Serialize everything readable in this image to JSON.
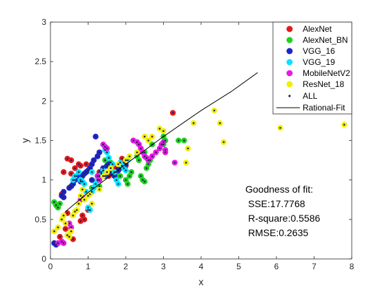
{
  "chart_data": {
    "type": "scatter",
    "title": "",
    "xlabel": "x",
    "ylabel": "y",
    "xlim": [
      0,
      8
    ],
    "ylim": [
      0,
      3
    ],
    "xticks": [
      "0",
      "1",
      "2",
      "3",
      "4",
      "5",
      "6",
      "7",
      "8"
    ],
    "yticks": [
      "0",
      "0.5",
      "1",
      "1.5",
      "2",
      "2.5",
      "3"
    ],
    "grid": false,
    "legend_position": "top-right",
    "series": [
      {
        "name": "AlexNet",
        "color": "#e41a1c",
        "points": [
          [
            0.45,
            1.27
          ],
          [
            0.55,
            1.25
          ],
          [
            0.75,
            1.2
          ],
          [
            0.8,
            1.18
          ],
          [
            0.65,
            1.15
          ],
          [
            0.35,
            1.1
          ],
          [
            0.55,
            1.08
          ],
          [
            0.3,
            0.82
          ],
          [
            0.45,
            0.58
          ],
          [
            0.85,
            0.55
          ],
          [
            0.9,
            0.5
          ],
          [
            0.8,
            0.48
          ],
          [
            0.6,
            0.25
          ],
          [
            0.25,
            0.28
          ],
          [
            0.4,
            0.38
          ],
          [
            1.0,
            0.62
          ],
          [
            1.3,
            1.1
          ],
          [
            1.55,
            1.05
          ],
          [
            1.75,
            1.15
          ],
          [
            1.9,
            1.27
          ],
          [
            1.95,
            1.22
          ],
          [
            2.0,
            1.18
          ],
          [
            3.25,
            1.85
          ],
          [
            0.95,
            1.2
          ]
        ]
      },
      {
        "name": "AlexNet_BN",
        "color": "#1ed41e",
        "points": [
          [
            0.1,
            0.72
          ],
          [
            0.15,
            0.68
          ],
          [
            0.2,
            0.65
          ],
          [
            0.25,
            0.7
          ],
          [
            1.1,
            0.9
          ],
          [
            1.2,
            0.95
          ],
          [
            1.3,
            0.92
          ],
          [
            1.45,
            1.25
          ],
          [
            1.6,
            1.22
          ],
          [
            1.75,
            1.1
          ],
          [
            1.85,
            1.05
          ],
          [
            2.0,
            1.0
          ],
          [
            2.05,
            0.95
          ],
          [
            2.1,
            1.05
          ],
          [
            2.15,
            1.1
          ],
          [
            2.3,
            1.3
          ],
          [
            2.35,
            1.25
          ],
          [
            2.4,
            1.05
          ],
          [
            2.45,
            1.0
          ],
          [
            2.5,
            0.98
          ],
          [
            2.55,
            1.15
          ],
          [
            2.6,
            1.2
          ],
          [
            2.65,
            1.25
          ],
          [
            2.5,
            1.35
          ],
          [
            2.7,
            1.45
          ],
          [
            3.0,
            1.55
          ],
          [
            3.05,
            1.5
          ],
          [
            3.0,
            1.45
          ],
          [
            3.4,
            1.5
          ],
          [
            3.55,
            1.5
          ]
        ]
      },
      {
        "name": "VGG_16",
        "color": "#1f26c8",
        "points": [
          [
            0.1,
            0.2
          ],
          [
            0.15,
            0.18
          ],
          [
            0.3,
            0.8
          ],
          [
            0.35,
            0.78
          ],
          [
            0.35,
            0.85
          ],
          [
            0.6,
            0.95
          ],
          [
            0.65,
            1.0
          ],
          [
            0.7,
            1.05
          ],
          [
            0.8,
            0.98
          ],
          [
            0.85,
            1.05
          ],
          [
            0.95,
            1.1
          ],
          [
            1.0,
            1.12
          ],
          [
            1.05,
            1.15
          ],
          [
            1.1,
            1.2
          ],
          [
            1.15,
            1.25
          ],
          [
            1.2,
            1.55
          ],
          [
            1.25,
            1.3
          ],
          [
            1.3,
            1.35
          ],
          [
            1.35,
            1.1
          ],
          [
            1.4,
            1.15
          ],
          [
            1.45,
            1.05
          ],
          [
            1.5,
            1.18
          ],
          [
            1.55,
            1.2
          ],
          [
            1.6,
            1.1
          ],
          [
            1.1,
            1.0
          ],
          [
            0.9,
            1.08
          ],
          [
            0.5,
            0.9
          ],
          [
            0.55,
            0.92
          ],
          [
            1.7,
            1.05
          ],
          [
            1.8,
            1.12
          ],
          [
            1.85,
            1.15
          ],
          [
            2.0,
            1.2
          ]
        ]
      },
      {
        "name": "VGG_19",
        "color": "#00e6ff",
        "points": [
          [
            0.6,
            1.0
          ],
          [
            0.65,
            1.05
          ],
          [
            0.75,
            1.1
          ],
          [
            0.8,
            1.0
          ],
          [
            0.85,
            0.98
          ],
          [
            0.9,
            0.95
          ],
          [
            0.95,
            0.85
          ],
          [
            1.0,
            0.65
          ],
          [
            1.05,
            0.62
          ],
          [
            1.1,
            0.85
          ],
          [
            1.15,
            0.9
          ],
          [
            1.2,
            0.95
          ],
          [
            1.25,
            1.0
          ],
          [
            1.3,
            1.05
          ],
          [
            1.35,
            1.08
          ],
          [
            1.4,
            1.12
          ],
          [
            1.45,
            1.38
          ],
          [
            1.5,
            1.35
          ],
          [
            1.55,
            1.28
          ],
          [
            1.6,
            1.15
          ],
          [
            1.65,
            1.2
          ],
          [
            1.7,
            1.1
          ],
          [
            1.75,
            1.0
          ],
          [
            1.8,
            0.95
          ],
          [
            1.85,
            1.22
          ],
          [
            1.9,
            1.18
          ],
          [
            1.95,
            1.15
          ],
          [
            2.0,
            1.12
          ],
          [
            2.05,
            1.25
          ],
          [
            1.1,
            1.1
          ]
        ]
      },
      {
        "name": "MobileNetV2",
        "color": "#e619e6",
        "points": [
          [
            0.2,
            0.2
          ],
          [
            0.3,
            0.22
          ],
          [
            0.35,
            0.2
          ],
          [
            0.5,
            0.45
          ],
          [
            0.55,
            0.4
          ],
          [
            0.8,
            0.75
          ],
          [
            0.85,
            0.78
          ],
          [
            1.25,
            1.05
          ],
          [
            1.3,
            1.0
          ],
          [
            1.4,
            1.45
          ],
          [
            1.45,
            1.42
          ],
          [
            1.5,
            1.4
          ],
          [
            2.2,
            1.5
          ],
          [
            2.3,
            1.48
          ],
          [
            2.35,
            1.45
          ],
          [
            2.4,
            1.4
          ],
          [
            2.45,
            1.35
          ],
          [
            2.5,
            1.3
          ],
          [
            2.55,
            1.28
          ],
          [
            2.6,
            1.25
          ],
          [
            2.7,
            1.3
          ],
          [
            2.8,
            1.35
          ],
          [
            2.9,
            1.4
          ],
          [
            2.95,
            1.45
          ],
          [
            3.0,
            1.48
          ],
          [
            3.05,
            1.38
          ],
          [
            3.3,
            1.22
          ],
          [
            3.05,
            1.35
          ]
        ]
      },
      {
        "name": "ResNet_18",
        "color": "#f0f000",
        "points": [
          [
            0.1,
            0.35
          ],
          [
            0.2,
            0.4
          ],
          [
            0.3,
            0.5
          ],
          [
            0.35,
            0.55
          ],
          [
            0.4,
            0.45
          ],
          [
            0.45,
            0.3
          ],
          [
            0.5,
            0.28
          ],
          [
            0.55,
            0.35
          ],
          [
            0.6,
            0.55
          ],
          [
            0.65,
            0.6
          ],
          [
            0.7,
            0.62
          ],
          [
            0.75,
            0.7
          ],
          [
            0.8,
            0.8
          ],
          [
            0.85,
            0.88
          ],
          [
            0.9,
            0.75
          ],
          [
            1.0,
            0.8
          ],
          [
            1.05,
            0.82
          ],
          [
            1.1,
            0.7
          ],
          [
            1.3,
            0.88
          ],
          [
            1.4,
            1.05
          ],
          [
            1.5,
            1.1
          ],
          [
            1.6,
            1.15
          ],
          [
            1.8,
            1.2
          ],
          [
            2.0,
            1.25
          ],
          [
            2.1,
            1.3
          ],
          [
            2.3,
            1.35
          ],
          [
            2.5,
            1.55
          ],
          [
            2.6,
            1.5
          ],
          [
            2.7,
            1.55
          ],
          [
            2.9,
            1.65
          ],
          [
            3.0,
            1.62
          ],
          [
            3.6,
            1.22
          ],
          [
            3.65,
            1.4
          ],
          [
            3.8,
            1.72
          ],
          [
            4.35,
            1.88
          ],
          [
            4.5,
            1.72
          ],
          [
            4.6,
            1.48
          ],
          [
            6.1,
            1.66
          ],
          [
            7.8,
            1.7
          ]
        ]
      }
    ],
    "all_series": {
      "name": "ALL",
      "color": "#20205a"
    },
    "fit": {
      "name": "Rational-Fit",
      "color": "#000000",
      "x": [
        0.4,
        1.0,
        2.0,
        3.0,
        4.0,
        4.8,
        5.5
      ],
      "y": [
        0.6,
        0.84,
        1.2,
        1.55,
        1.88,
        2.12,
        2.36
      ]
    },
    "annotation": {
      "title": "Goodness of fit:",
      "lines": [
        "SSE:17.7768",
        "R-square:0.5586",
        "RMSE:0.2635"
      ]
    }
  }
}
